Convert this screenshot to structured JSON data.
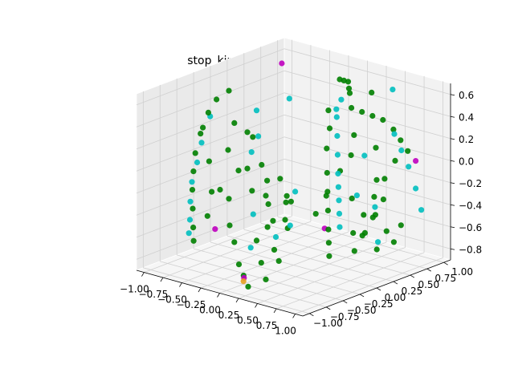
{
  "chart_data": {
    "type": "scatter",
    "title": "stop_kind_Listwise_ _ _Euc.",
    "xlabel": "",
    "ylabel": "",
    "zlabel": "",
    "grid": true,
    "xlim": [
      -1.1,
      1.1
    ],
    "ylim": [
      -1.1,
      1.1
    ],
    "zlim": [
      -0.9,
      0.7
    ],
    "x_ticks": [
      -1.0,
      -0.75,
      -0.5,
      -0.25,
      0.0,
      0.25,
      0.5,
      0.75,
      1.0
    ],
    "x_tick_labels": [
      "−1.00",
      "−0.75",
      "−0.50",
      "−0.25",
      "0.00",
      "0.25",
      "0.50",
      "0.75",
      "1.00"
    ],
    "y_ticks": [
      -1.0,
      -0.75,
      -0.5,
      -0.25,
      0.0,
      0.25,
      0.5,
      0.75,
      1.0
    ],
    "y_tick_labels": [
      "−1.00",
      "−0.75",
      "−0.50",
      "−0.25",
      "0.00",
      "0.25",
      "0.50",
      "0.75",
      "1.00"
    ],
    "z_ticks": [
      -0.8,
      -0.6,
      -0.4,
      -0.2,
      0.0,
      0.2,
      0.4,
      0.6
    ],
    "z_tick_labels": [
      "−0.8",
      "−0.6",
      "−0.4",
      "−0.2",
      "0.0",
      "0.2",
      "0.4",
      "0.6"
    ],
    "colors": {
      "green": "#008000",
      "cyan": "#00bfbf",
      "magenta": "#bf00bf",
      "orange": "#e6a020"
    },
    "series": [
      {
        "color": "green",
        "points": [
          [
            -0.95,
            -0.2,
            0.35
          ],
          [
            -0.92,
            -0.35,
            0.2
          ],
          [
            -0.9,
            -0.45,
            0.05
          ],
          [
            -0.88,
            -0.5,
            -0.1
          ],
          [
            -0.85,
            -0.55,
            -0.25
          ],
          [
            -0.8,
            -0.6,
            -0.4
          ],
          [
            -0.75,
            -0.65,
            -0.55
          ],
          [
            -0.7,
            -0.7,
            -0.65
          ],
          [
            -0.93,
            -0.1,
            0.45
          ],
          [
            -0.9,
            0.05,
            0.5
          ],
          [
            -0.6,
            -0.3,
            0.1
          ],
          [
            -0.55,
            -0.2,
            -0.1
          ],
          [
            -0.5,
            -0.4,
            -0.3
          ],
          [
            -0.45,
            -0.1,
            0.2
          ],
          [
            -0.4,
            -0.5,
            -0.5
          ],
          [
            -0.35,
            0.0,
            -0.2
          ],
          [
            -0.3,
            -0.35,
            0.0
          ],
          [
            -0.25,
            -0.6,
            -0.6
          ],
          [
            -0.2,
            -0.15,
            -0.35
          ],
          [
            -0.15,
            -0.45,
            -0.15
          ],
          [
            -0.1,
            -0.7,
            -0.75
          ],
          [
            -0.05,
            -0.25,
            -0.45
          ],
          [
            0.0,
            -0.55,
            -0.55
          ],
          [
            0.05,
            -0.8,
            -0.8
          ],
          [
            0.1,
            -0.4,
            -0.65
          ],
          [
            0.15,
            -0.65,
            -0.7
          ],
          [
            0.2,
            -0.9,
            -0.85
          ],
          [
            0.25,
            -0.5,
            -0.7
          ],
          [
            0.3,
            -0.75,
            -0.8
          ],
          [
            -0.65,
            -0.15,
            0.3
          ],
          [
            -0.7,
            0.1,
            0.15
          ],
          [
            -0.6,
            0.2,
            -0.15
          ],
          [
            -0.5,
            0.15,
            -0.4
          ],
          [
            -0.4,
            0.25,
            -0.25
          ],
          [
            -0.3,
            0.3,
            -0.45
          ],
          [
            0.5,
            0.3,
            0.55
          ],
          [
            0.55,
            0.4,
            0.5
          ],
          [
            0.6,
            0.5,
            0.45
          ],
          [
            0.65,
            0.6,
            0.4
          ],
          [
            0.7,
            0.7,
            0.3
          ],
          [
            0.75,
            0.75,
            0.2
          ],
          [
            0.8,
            0.8,
            0.1
          ],
          [
            0.3,
            0.2,
            0.35
          ],
          [
            0.35,
            0.1,
            0.2
          ],
          [
            0.4,
            0.05,
            0.0
          ],
          [
            0.45,
            0.0,
            -0.15
          ],
          [
            0.5,
            -0.05,
            -0.3
          ],
          [
            0.55,
            -0.1,
            -0.45
          ],
          [
            0.6,
            -0.15,
            -0.55
          ],
          [
            0.65,
            -0.2,
            -0.65
          ],
          [
            0.7,
            0.1,
            -0.5
          ],
          [
            0.75,
            0.2,
            -0.35
          ],
          [
            0.8,
            0.3,
            -0.2
          ],
          [
            0.85,
            0.4,
            -0.05
          ],
          [
            0.9,
            0.5,
            0.1
          ],
          [
            0.6,
            0.35,
            -0.6
          ],
          [
            0.65,
            0.45,
            -0.45
          ],
          [
            0.7,
            0.55,
            -0.3
          ],
          [
            0.75,
            0.65,
            -0.7
          ],
          [
            0.8,
            0.7,
            -0.55
          ],
          [
            0.2,
            0.6,
            0.6
          ],
          [
            0.1,
            0.7,
            0.62
          ],
          [
            0.0,
            0.75,
            0.6
          ],
          [
            -0.1,
            0.8,
            0.58
          ],
          [
            0.3,
            0.5,
            0.6
          ],
          [
            0.4,
            0.45,
            0.25
          ],
          [
            0.45,
            0.35,
            0.1
          ],
          [
            0.35,
            0.3,
            -0.05
          ],
          [
            0.3,
            0.15,
            -0.25
          ],
          [
            0.25,
            0.05,
            -0.4
          ],
          [
            0.85,
            -0.05,
            -0.6
          ],
          [
            0.9,
            0.05,
            -0.45
          ],
          [
            0.95,
            0.15,
            -0.3
          ],
          [
            0.88,
            0.25,
            -0.65
          ],
          [
            0.92,
            0.35,
            -0.5
          ],
          [
            -0.2,
            0.1,
            -0.55
          ],
          [
            -0.1,
            0.0,
            -0.35
          ],
          [
            0.0,
            -0.1,
            -0.25
          ],
          [
            0.1,
            -0.2,
            -0.5
          ],
          [
            -0.3,
            -0.05,
            -0.6
          ],
          [
            0.15,
            0.35,
            0.45
          ],
          [
            0.5,
            0.6,
            0.62
          ],
          [
            0.6,
            0.55,
            0.15
          ],
          [
            0.7,
            0.45,
            -0.1
          ],
          [
            0.55,
            0.25,
            -0.25
          ],
          [
            -0.85,
            -0.3,
            -0.05
          ],
          [
            -0.8,
            -0.45,
            0.3
          ],
          [
            -0.75,
            -0.25,
            -0.3
          ],
          [
            -0.65,
            -0.55,
            -0.45
          ],
          [
            -0.55,
            -0.6,
            -0.2
          ]
        ]
      },
      {
        "color": "cyan",
        "points": [
          [
            -0.97,
            -0.15,
            0.3
          ],
          [
            -0.95,
            -0.3,
            0.1
          ],
          [
            -0.92,
            -0.4,
            -0.05
          ],
          [
            -0.9,
            -0.5,
            -0.2
          ],
          [
            -0.85,
            -0.58,
            -0.35
          ],
          [
            -0.82,
            -0.62,
            -0.5
          ],
          [
            -0.78,
            -0.68,
            -0.6
          ],
          [
            -0.5,
            0.5,
            0.4
          ],
          [
            -0.4,
            -0.1,
            0.45
          ],
          [
            -0.2,
            -0.3,
            0.3
          ],
          [
            0.0,
            -0.6,
            -0.3
          ],
          [
            0.1,
            -0.75,
            -0.55
          ],
          [
            0.3,
            -0.6,
            -0.45
          ],
          [
            0.4,
            -0.5,
            -0.35
          ],
          [
            0.35,
            0.25,
            0.45
          ],
          [
            0.4,
            0.2,
            0.3
          ],
          [
            0.45,
            0.15,
            0.15
          ],
          [
            0.5,
            0.1,
            0.0
          ],
          [
            0.55,
            0.05,
            -0.1
          ],
          [
            0.6,
            0.0,
            -0.2
          ],
          [
            0.65,
            -0.05,
            -0.3
          ],
          [
            0.7,
            -0.1,
            -0.4
          ],
          [
            0.3,
            0.3,
            0.5
          ],
          [
            0.32,
            0.35,
            0.58
          ],
          [
            0.8,
            0.6,
            0.3
          ],
          [
            0.85,
            0.65,
            0.15
          ],
          [
            0.9,
            0.7,
            0.0
          ],
          [
            0.95,
            0.75,
            -0.2
          ],
          [
            0.98,
            0.8,
            -0.4
          ],
          [
            0.75,
            0.1,
            -0.15
          ],
          [
            0.85,
            0.3,
            -0.6
          ],
          [
            0.9,
            0.2,
            -0.25
          ],
          [
            0.2,
            -0.2,
            -0.15
          ],
          [
            -0.6,
            0.05,
            0.0
          ],
          [
            0.6,
            0.8,
            0.62
          ],
          [
            0.45,
            0.55,
            0.05
          ]
        ]
      },
      {
        "color": "magenta",
        "points": [
          [
            -0.6,
            0.5,
            0.7
          ],
          [
            -0.55,
            -0.55,
            -0.55
          ],
          [
            0.5,
            -0.1,
            -0.45
          ],
          [
            0.95,
            0.75,
            0.05
          ],
          [
            0.1,
            -0.85,
            -0.8
          ]
        ]
      },
      {
        "color": "orange",
        "points": [
          [
            0.12,
            -0.88,
            -0.82
          ]
        ]
      }
    ]
  }
}
